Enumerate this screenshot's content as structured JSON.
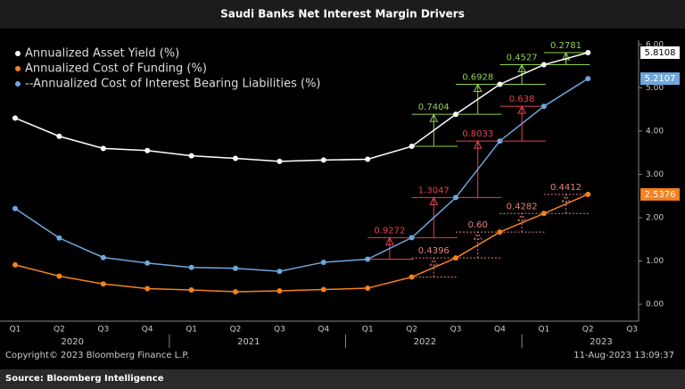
{
  "title": "Saudi Banks Net Interest Margin Drivers",
  "chart_data": {
    "type": "line",
    "categories": [
      "Q1",
      "Q2",
      "Q3",
      "Q4",
      "Q1",
      "Q2",
      "Q3",
      "Q4",
      "Q1",
      "Q2",
      "Q3",
      "Q4",
      "Q1",
      "Q2",
      "Q3"
    ],
    "years": [
      "2020",
      "2021",
      "2022",
      "2023"
    ],
    "series": [
      {
        "name": "Annualized Asset Yield (%)",
        "color": "#ffffff",
        "delta_color": "#8fd14f",
        "delta_dashed": false,
        "values": [
          4.3,
          3.88,
          3.6,
          3.55,
          3.43,
          3.37,
          3.3,
          3.33,
          3.35,
          3.6468,
          4.3872,
          5.08,
          5.5327,
          5.8108,
          null
        ],
        "deltas": [
          null,
          null,
          null,
          null,
          null,
          null,
          null,
          null,
          null,
          null,
          0.7404,
          0.6928,
          0.4527,
          0.2781,
          null
        ]
      },
      {
        "name": "Annualized Cost of Funding (%)",
        "color": "#f5811f",
        "delta_color": "#e88080",
        "delta_dashed": true,
        "values": [
          0.91,
          0.65,
          0.47,
          0.36,
          0.33,
          0.29,
          0.31,
          0.34,
          0.37,
          0.6286,
          1.0682,
          1.6682,
          2.0964,
          2.5376,
          null
        ],
        "deltas": [
          null,
          null,
          null,
          null,
          null,
          null,
          null,
          null,
          null,
          null,
          0.4396,
          {
            "value": 0.6,
            "label": "0.60"
          },
          0.4282,
          0.4412,
          null
        ]
      },
      {
        "name": "--Annualized Cost of Interest Bearing Liabilities (%)",
        "color": "#6fa8dc",
        "delta_color": "#e8414d",
        "delta_dashed": false,
        "values": [
          2.21,
          1.53,
          1.08,
          0.95,
          0.85,
          0.83,
          0.76,
          0.97,
          1.04,
          1.5375,
          2.4647,
          3.7694,
          4.5727,
          5.2107,
          null
        ],
        "deltas": [
          null,
          null,
          null,
          null,
          null,
          null,
          null,
          null,
          null,
          0.9272,
          1.3047,
          0.8033,
          0.638,
          null,
          null
        ]
      }
    ],
    "ylim": [
      -0.35,
      6.1
    ],
    "yticks": [
      {
        "value": 0,
        "label": "0.00"
      },
      {
        "value": 1,
        "label": "1.00"
      },
      {
        "value": 2,
        "label": "2.00"
      },
      {
        "value": 3,
        "label": "3.00"
      },
      {
        "value": 4,
        "label": "4.00"
      },
      {
        "value": 5,
        "label": "5.00"
      },
      {
        "value": 6,
        "label": "6.00"
      }
    ]
  },
  "footer": {
    "copyright": "Copyright© 2023 Bloomberg Finance L.P.",
    "timestamp": "11-Aug-2023 13:09:37",
    "source": "Source: Bloomberg Intelligence"
  }
}
